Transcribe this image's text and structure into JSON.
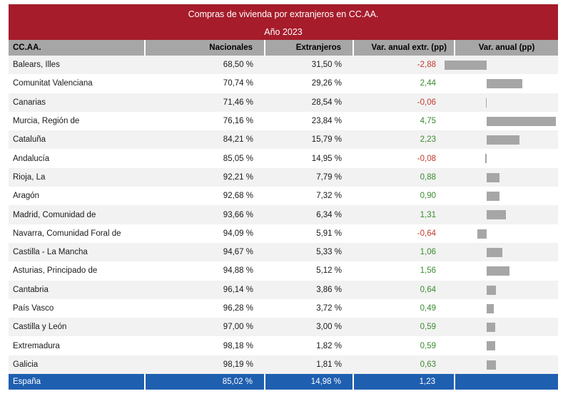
{
  "title": "Compras de vivienda por extranjeros en CC.AA.",
  "subtitle": "Año 2023",
  "columns": [
    "CC.AA.",
    "Nacionales",
    "Extranjeros",
    "Var. anual extr. (pp)",
    "Var. anual (pp)"
  ],
  "colors": {
    "header_band": "#a61c2b",
    "column_header": "#a6a6a6",
    "total_row": "#1f5fb0",
    "positive": "#3a8a2e",
    "negative": "#c0392b",
    "bar": "#a6a6a6"
  },
  "rows": [
    {
      "region": "Balears, Illes",
      "nacionales": "68,50 %",
      "extranjeros": "31,50 %",
      "var_label": "-2,88",
      "var": -2.88
    },
    {
      "region": "Comunitat Valenciana",
      "nacionales": "70,74 %",
      "extranjeros": "29,26 %",
      "var_label": "2,44",
      "var": 2.44
    },
    {
      "region": "Canarias",
      "nacionales": "71,46 %",
      "extranjeros": "28,54 %",
      "var_label": "-0,06",
      "var": -0.06
    },
    {
      "region": "Murcia, Región de",
      "nacionales": "76,16 %",
      "extranjeros": "23,84 %",
      "var_label": "4,75",
      "var": 4.75
    },
    {
      "region": "Cataluña",
      "nacionales": "84,21 %",
      "extranjeros": "15,79 %",
      "var_label": "2,23",
      "var": 2.23
    },
    {
      "region": "Andalucía",
      "nacionales": "85,05 %",
      "extranjeros": "14,95 %",
      "var_label": "-0,08",
      "var": -0.08
    },
    {
      "region": "Rioja, La",
      "nacionales": "92,21 %",
      "extranjeros": "7,79 %",
      "var_label": "0,88",
      "var": 0.88
    },
    {
      "region": "Aragón",
      "nacionales": "92,68 %",
      "extranjeros": "7,32 %",
      "var_label": "0,90",
      "var": 0.9
    },
    {
      "region": "Madrid, Comunidad de",
      "nacionales": "93,66 %",
      "extranjeros": "6,34 %",
      "var_label": "1,31",
      "var": 1.31
    },
    {
      "region": "Navarra, Comunidad Foral de",
      "nacionales": "94,09 %",
      "extranjeros": "5,91 %",
      "var_label": "-0,64",
      "var": -0.64
    },
    {
      "region": "Castilla - La Mancha",
      "nacionales": "94,67 %",
      "extranjeros": "5,33 %",
      "var_label": "1,06",
      "var": 1.06
    },
    {
      "region": "Asturias, Principado de",
      "nacionales": "94,88 %",
      "extranjeros": "5,12 %",
      "var_label": "1,56",
      "var": 1.56
    },
    {
      "region": "Cantabria",
      "nacionales": "96,14 %",
      "extranjeros": "3,86 %",
      "var_label": "0,64",
      "var": 0.64
    },
    {
      "region": "País Vasco",
      "nacionales": "96,28 %",
      "extranjeros": "3,72 %",
      "var_label": "0,49",
      "var": 0.49
    },
    {
      "region": "Castilla y León",
      "nacionales": "97,00 %",
      "extranjeros": "3,00 %",
      "var_label": "0,59",
      "var": 0.59
    },
    {
      "region": "Extremadura",
      "nacionales": "98,18 %",
      "extranjeros": "1,82 %",
      "var_label": "0,59",
      "var": 0.59
    },
    {
      "region": "Galicia",
      "nacionales": "98,19 %",
      "extranjeros": "1,81 %",
      "var_label": "0,63",
      "var": 0.63
    }
  ],
  "total": {
    "region": "España",
    "nacionales": "85,02 %",
    "extranjeros": "14,98 %",
    "var_label": "1,23"
  }
}
